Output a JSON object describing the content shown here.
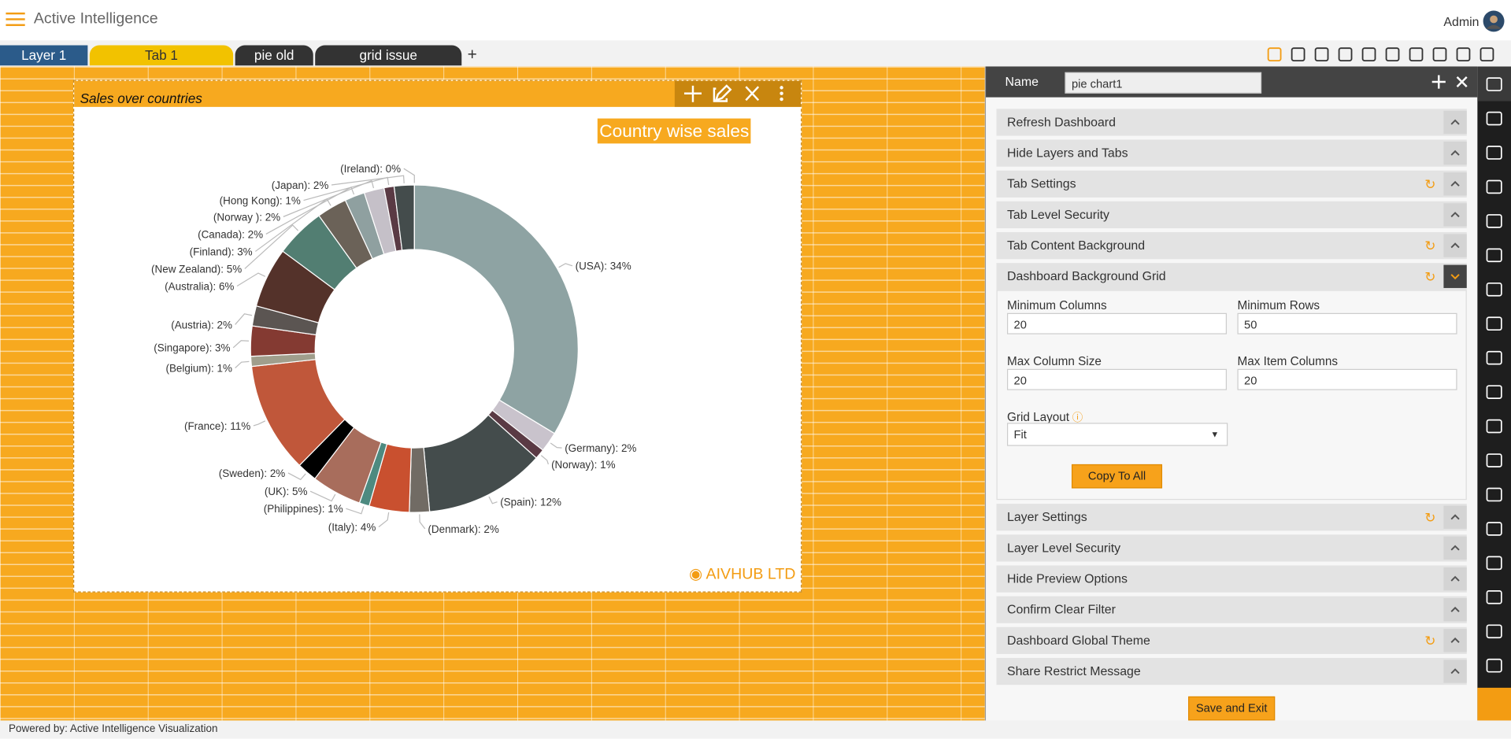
{
  "header": {
    "app_title": "Active Intelligence",
    "user": "Admin"
  },
  "tabs": [
    "Layer 1",
    "Tab 1",
    "pie old",
    "grid issue"
  ],
  "add_tab": "+",
  "widget": {
    "title": "Sales over countries",
    "brand": "AIVHUB LTD"
  },
  "chart_data": {
    "type": "pie",
    "donut": true,
    "title": "Country wise sales",
    "values": [
      34,
      2,
      1,
      12,
      2,
      4,
      1,
      5,
      2,
      11,
      1,
      3,
      2,
      6,
      5,
      3,
      2,
      2,
      1,
      2,
      0
    ],
    "value_labels": [
      "(USA): 34%",
      "(Germany): 2%",
      "(Norway): 1%",
      "(Spain): 12%",
      "(Denmark): 2%",
      "(Italy): 4%",
      "(Philippines): 1%",
      "(UK): 5%",
      "(Sweden): 2%",
      "(France): 11%",
      "(Belgium): 1%",
      "(Singapore): 3%",
      "(Austria): 2%",
      "(Australia): 6%",
      "(New Zealand): 5%",
      "(Finland): 3%",
      "(Canada): 2%",
      "(Norway ): 2%",
      "(Hong Kong): 1%",
      "(Japan): 2%",
      "(Ireland): 0%"
    ],
    "colors": [
      "#8ea3a3",
      "#c9c3cc",
      "#5a3a44",
      "#444c4c",
      "#716b64",
      "#c9502f",
      "#4d8a80",
      "#a86d5c",
      "#000000",
      "#c0573a",
      "#a09e8c",
      "#843a32",
      "#5b5552",
      "#54322a",
      "#527e72",
      "#6b6258",
      "#8fa0a0",
      "#c5c0c8",
      "#5a3a44",
      "#444c4c",
      "#c9502f"
    ]
  },
  "panel": {
    "name_label": "Name",
    "name_value": "pie chart1",
    "sections": [
      {
        "title": "Refresh Dashboard"
      },
      {
        "title": "Hide Layers and Tabs"
      },
      {
        "title": "Tab Settings",
        "refresh": true
      },
      {
        "title": "Tab Level Security"
      },
      {
        "title": "Tab Content Background",
        "refresh": true
      },
      {
        "title": "Dashboard Background Grid",
        "refresh": true,
        "expanded": true,
        "fields": [
          {
            "label": "Minimum Columns",
            "value": 20
          },
          {
            "label": "Minimum Rows",
            "value": 50
          },
          {
            "label": "Max Column Size",
            "value": 20
          },
          {
            "label": "Max Item Columns",
            "value": 20
          }
        ],
        "layout_label": "Grid Layout",
        "layout_value": "Fit",
        "button": "Copy To All"
      },
      {
        "title": "Layer Settings",
        "refresh": true
      },
      {
        "title": "Layer Level Security"
      },
      {
        "title": "Hide Preview Options"
      },
      {
        "title": "Confirm Clear Filter"
      },
      {
        "title": "Dashboard Global Theme",
        "refresh": true
      },
      {
        "title": "Share Restrict Message"
      }
    ],
    "save_button": "Save and Exit"
  },
  "footer": "Powered by: Active Intelligence Visualization"
}
